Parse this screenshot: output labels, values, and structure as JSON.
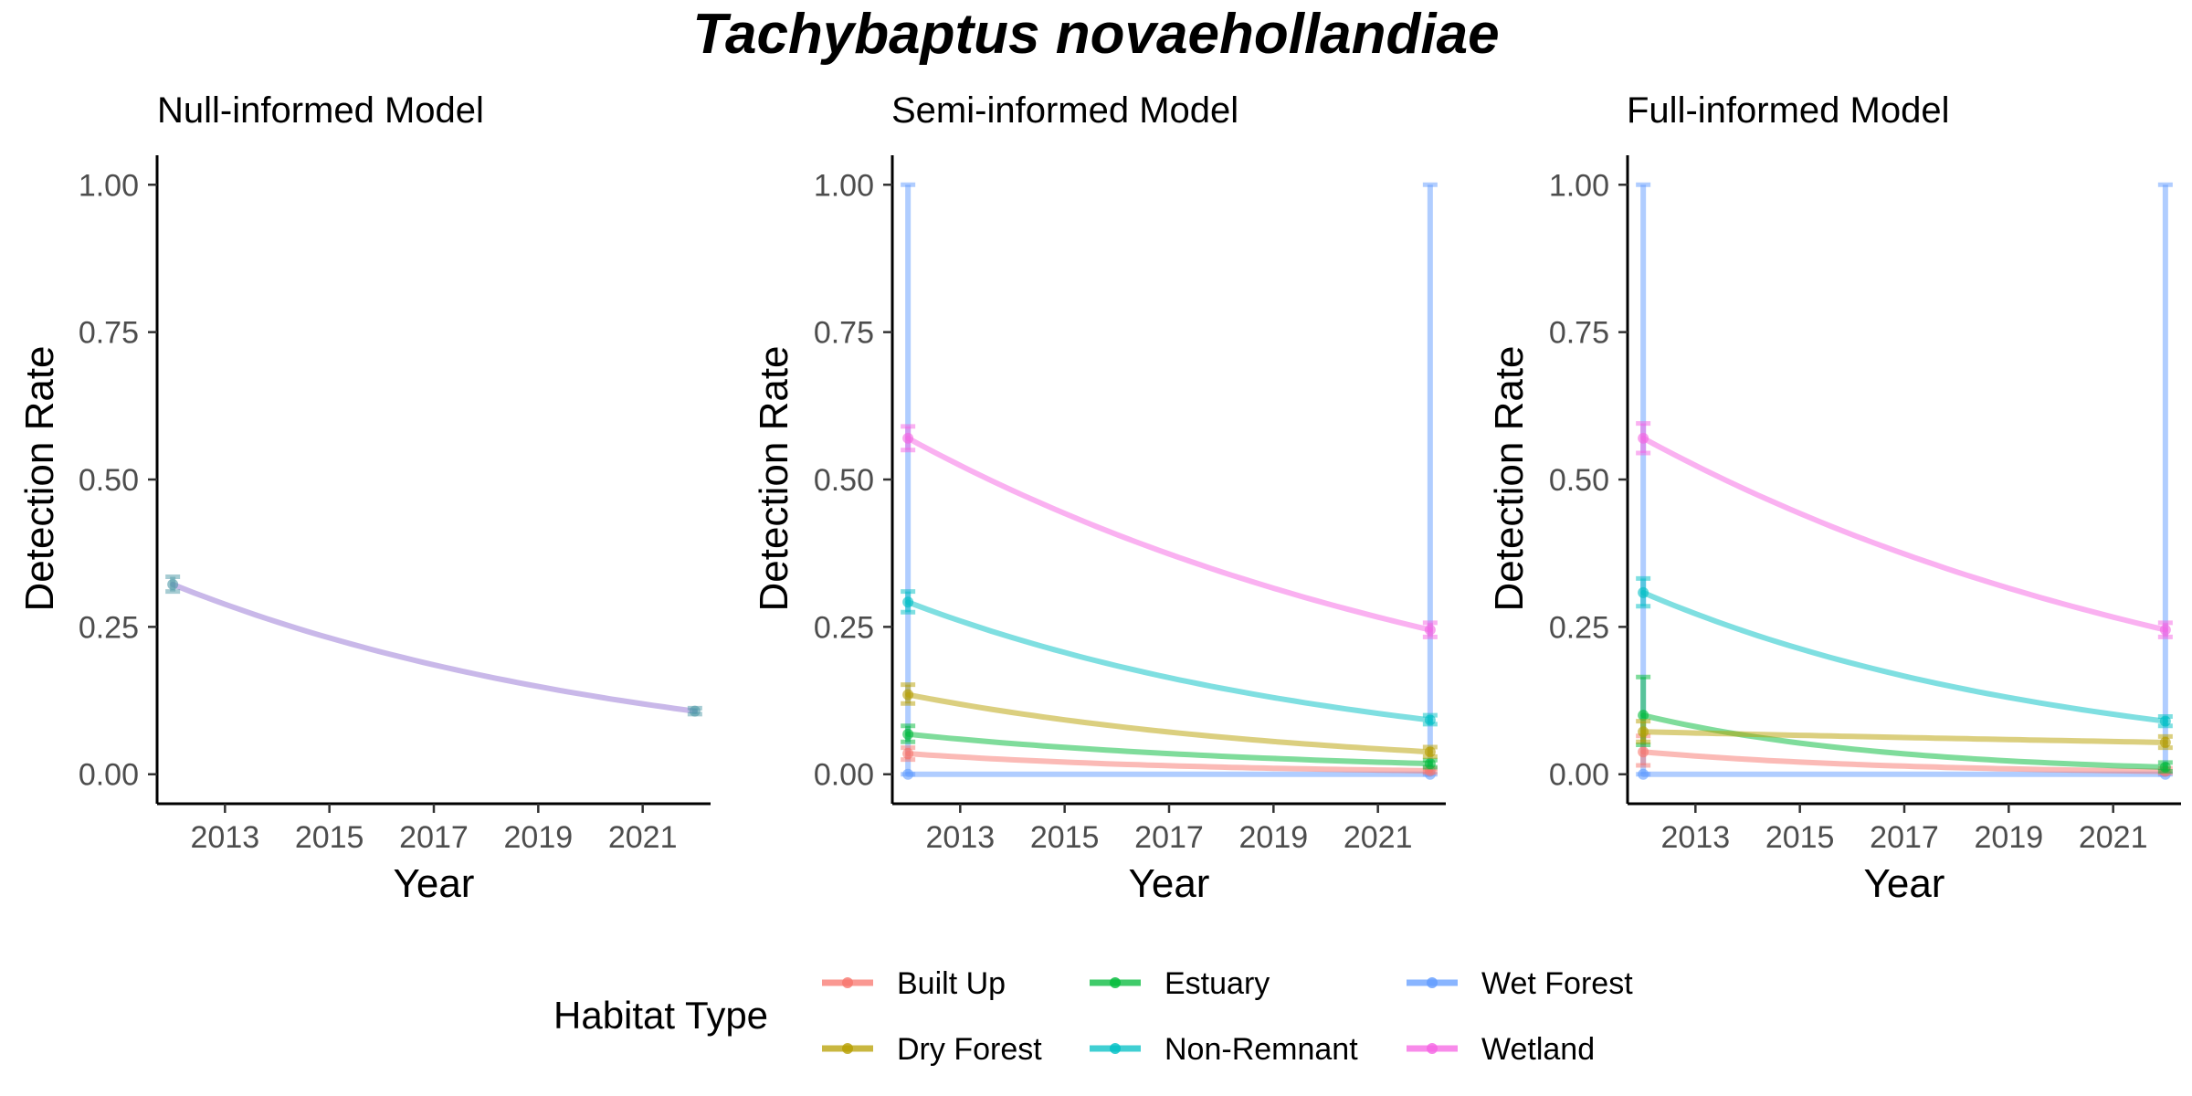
{
  "title": "Tachybaptus novaehollandiae",
  "legend": {
    "title": "Habitat Type",
    "items": [
      {
        "name": "Built Up",
        "color": "#F8766D"
      },
      {
        "name": "Dry Forest",
        "color": "#B79F00"
      },
      {
        "name": "Estuary",
        "color": "#00BA38"
      },
      {
        "name": "Non-Remnant",
        "color": "#00BFC4"
      },
      {
        "name": "Wet Forest",
        "color": "#619CFF"
      },
      {
        "name": "Wetland",
        "color": "#F564E3"
      }
    ]
  },
  "chart_data": [
    {
      "type": "line",
      "title": "Null-informed Model",
      "xlabel": "Year",
      "ylabel": "Detection Rate",
      "xlim": [
        2011.7,
        2022.3
      ],
      "ylim": [
        -0.05,
        1.05
      ],
      "xticks": [
        2013,
        2015,
        2017,
        2019,
        2021
      ],
      "yticks": [
        "0.00",
        "0.25",
        "0.50",
        "0.75",
        "1.00"
      ],
      "series": [
        {
          "color": "#9471D3",
          "x": [
            2012,
            2022
          ],
          "start": 0.322,
          "end": 0.107,
          "errors": [
            {
              "x": 2012,
              "low": 0.31,
              "high": 0.335,
              "color": "#4F9AA8"
            },
            {
              "x": 2022,
              "low": 0.102,
              "high": 0.112,
              "color": "#4F9AA8"
            }
          ]
        }
      ]
    },
    {
      "type": "line",
      "title": "Semi-informed Model",
      "xlabel": "Year",
      "ylabel": "Detection Rate",
      "xlim": [
        2011.7,
        2022.3
      ],
      "ylim": [
        -0.05,
        1.05
      ],
      "xticks": [
        2013,
        2015,
        2017,
        2019,
        2021
      ],
      "yticks": [
        "0.00",
        "0.25",
        "0.50",
        "0.75",
        "1.00"
      ],
      "series": [
        {
          "name": "Wet Forest",
          "color": "#619CFF",
          "x": [
            2012,
            2022
          ],
          "start": 0.0,
          "end": 0.0,
          "errors": [
            {
              "x": 2012,
              "low": 0.0,
              "high": 1.0
            },
            {
              "x": 2022,
              "low": 0.0,
              "high": 1.0
            }
          ]
        },
        {
          "name": "Built Up",
          "color": "#F8766D",
          "x": [
            2012,
            2022
          ],
          "start": 0.035,
          "end": 0.006,
          "errors": [
            {
              "x": 2012,
              "low": 0.025,
              "high": 0.045
            },
            {
              "x": 2022,
              "low": 0.003,
              "high": 0.01
            }
          ]
        },
        {
          "name": "Estuary",
          "color": "#00BA38",
          "x": [
            2012,
            2022
          ],
          "start": 0.068,
          "end": 0.018,
          "errors": [
            {
              "x": 2012,
              "low": 0.055,
              "high": 0.082
            },
            {
              "x": 2022,
              "low": 0.012,
              "high": 0.024
            }
          ]
        },
        {
          "name": "Dry Forest",
          "color": "#B79F00",
          "x": [
            2012,
            2022
          ],
          "start": 0.135,
          "end": 0.038,
          "errors": [
            {
              "x": 2012,
              "low": 0.12,
              "high": 0.152
            },
            {
              "x": 2022,
              "low": 0.03,
              "high": 0.046
            }
          ]
        },
        {
          "name": "Non-Remnant",
          "color": "#00BFC4",
          "x": [
            2012,
            2022
          ],
          "start": 0.292,
          "end": 0.092,
          "errors": [
            {
              "x": 2012,
              "low": 0.275,
              "high": 0.31
            },
            {
              "x": 2022,
              "low": 0.085,
              "high": 0.1
            }
          ]
        },
        {
          "name": "Wetland",
          "color": "#F564E3",
          "x": [
            2012,
            2022
          ],
          "start": 0.57,
          "end": 0.245,
          "errors": [
            {
              "x": 2012,
              "low": 0.55,
              "high": 0.59
            },
            {
              "x": 2022,
              "low": 0.233,
              "high": 0.257
            }
          ]
        }
      ]
    },
    {
      "type": "line",
      "title": "Full-informed Model",
      "xlabel": "Year",
      "ylabel": "Detection Rate",
      "xlim": [
        2011.7,
        2022.3
      ],
      "ylim": [
        -0.05,
        1.05
      ],
      "xticks": [
        2013,
        2015,
        2017,
        2019,
        2021
      ],
      "yticks": [
        "0.00",
        "0.25",
        "0.50",
        "0.75",
        "1.00"
      ],
      "series": [
        {
          "name": "Wet Forest",
          "color": "#619CFF",
          "x": [
            2012,
            2022
          ],
          "start": 0.0,
          "end": 0.0,
          "errors": [
            {
              "x": 2012,
              "low": 0.0,
              "high": 1.0
            },
            {
              "x": 2022,
              "low": 0.0,
              "high": 1.0
            }
          ]
        },
        {
          "name": "Built Up",
          "color": "#F8766D",
          "x": [
            2012,
            2022
          ],
          "start": 0.038,
          "end": 0.005,
          "errors": [
            {
              "x": 2012,
              "low": 0.015,
              "high": 0.065
            },
            {
              "x": 2022,
              "low": 0.002,
              "high": 0.01
            }
          ]
        },
        {
          "name": "Estuary",
          "color": "#00BA38",
          "x": [
            2012,
            2022
          ],
          "start": 0.1,
          "end": 0.012,
          "errors": [
            {
              "x": 2012,
              "low": 0.05,
              "high": 0.165
            },
            {
              "x": 2022,
              "low": 0.005,
              "high": 0.02
            }
          ]
        },
        {
          "name": "Dry Forest",
          "color": "#B79F00",
          "x": [
            2012,
            2022
          ],
          "start": 0.072,
          "end": 0.054,
          "errors": [
            {
              "x": 2012,
              "low": 0.055,
              "high": 0.09
            },
            {
              "x": 2022,
              "low": 0.045,
              "high": 0.064
            }
          ]
        },
        {
          "name": "Non-Remnant",
          "color": "#00BFC4",
          "x": [
            2012,
            2022
          ],
          "start": 0.308,
          "end": 0.09,
          "errors": [
            {
              "x": 2012,
              "low": 0.285,
              "high": 0.332
            },
            {
              "x": 2022,
              "low": 0.082,
              "high": 0.098
            }
          ]
        },
        {
          "name": "Wetland",
          "color": "#F564E3",
          "x": [
            2012,
            2022
          ],
          "start": 0.57,
          "end": 0.245,
          "errors": [
            {
              "x": 2012,
              "low": 0.545,
              "high": 0.595
            },
            {
              "x": 2022,
              "low": 0.233,
              "high": 0.257
            }
          ]
        }
      ]
    }
  ]
}
